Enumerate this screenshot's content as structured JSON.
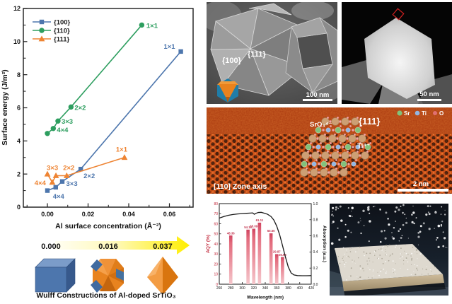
{
  "colors": {
    "series_100": "#4d76ad",
    "series_110": "#2d9e5f",
    "series_111": "#ee8433",
    "aqy_red": "#c22a3c",
    "bar_top": "#cf4460",
    "bar_bottom": "#f5c6cb",
    "arrow_yellow": "#ffee00",
    "hrtem_orange": "#c2410f"
  },
  "chart_data": [
    {
      "type": "scatter",
      "title": "",
      "xlabel": "Al surface concentration (Å⁻²)",
      "ylabel": "Surface energy (J/m²)",
      "xlim": [
        -0.012,
        0.072
      ],
      "ylim": [
        0,
        12
      ],
      "xticks": [
        0.0,
        0.02,
        0.04,
        0.06
      ],
      "yticks": [
        0,
        2,
        4,
        6,
        8,
        10,
        12
      ],
      "grid": false,
      "legend_position": "top-left",
      "series": [
        {
          "name": "{100}",
          "color": "#4d76ad",
          "marker": "square",
          "points": [
            {
              "x": 0.0,
              "y": 1.0,
              "label": ""
            },
            {
              "x": 0.0041,
              "y": 1.2,
              "label": "4×4"
            },
            {
              "x": 0.0073,
              "y": 1.55,
              "label": "3×3"
            },
            {
              "x": 0.0164,
              "y": 2.3,
              "label": "2×2"
            },
            {
              "x": 0.0656,
              "y": 9.4,
              "label": "1×1"
            }
          ]
        },
        {
          "name": "{110}",
          "color": "#2d9e5f",
          "marker": "circle",
          "points": [
            {
              "x": 0.0,
              "y": 4.45,
              "label": ""
            },
            {
              "x": 0.0029,
              "y": 4.75,
              "label": "4×4"
            },
            {
              "x": 0.0052,
              "y": 5.2,
              "label": "3×3"
            },
            {
              "x": 0.0116,
              "y": 6.05,
              "label": "2×2"
            },
            {
              "x": 0.0464,
              "y": 11.0,
              "label": "1×1"
            }
          ]
        },
        {
          "name": "{111}",
          "color": "#ee8433",
          "marker": "triangle",
          "points": [
            {
              "x": 0.0,
              "y": 2.0,
              "label": ""
            },
            {
              "x": 0.0024,
              "y": 1.5,
              "label": "4×4"
            },
            {
              "x": 0.0042,
              "y": 1.9,
              "label": "3×3"
            },
            {
              "x": 0.0095,
              "y": 1.9,
              "label": "2×2"
            },
            {
              "x": 0.0379,
              "y": 3.0,
              "label": "1×1"
            }
          ]
        }
      ]
    },
    {
      "type": "bar",
      "title": "",
      "xlabel": "Wavelength (nm)",
      "ylabel": "AQY (%)",
      "ylabel_right": "Absorption (a.u.)",
      "xlim": [
        260,
        420
      ],
      "ylim": [
        0,
        80
      ],
      "ylim_right": [
        0.0,
        1.0
      ],
      "xticks": [
        260,
        280,
        300,
        320,
        340,
        360,
        380,
        400,
        420
      ],
      "yticks": [
        0,
        10,
        20,
        30,
        40,
        50,
        60,
        70,
        80
      ],
      "yticks_right": [
        0.0,
        0.2,
        0.4,
        0.6,
        0.8,
        1.0
      ],
      "bars": [
        {
          "wavelength": 280,
          "aqy": 48.36,
          "label": "48.36"
        },
        {
          "wavelength": 310,
          "aqy": 54.16,
          "label": "54.16"
        },
        {
          "wavelength": 320,
          "aqy": 55.09,
          "label": "55.09"
        },
        {
          "wavelength": 330,
          "aqy": 61.11,
          "label": "61.11"
        },
        {
          "wavelength": 350,
          "aqy": 50.5,
          "label": "50.50"
        },
        {
          "wavelength": 360,
          "aqy": 29.87,
          "label": "29.87"
        },
        {
          "wavelength": 370,
          "aqy": 26.93,
          "label": "26.93"
        }
      ],
      "absorption_curve": [
        [
          260,
          0.82
        ],
        [
          268,
          0.84
        ],
        [
          276,
          0.855
        ],
        [
          284,
          0.865
        ],
        [
          292,
          0.872
        ],
        [
          300,
          0.876
        ],
        [
          308,
          0.88
        ],
        [
          314,
          0.883
        ],
        [
          318,
          0.885
        ],
        [
          321,
          0.868
        ],
        [
          324,
          0.88
        ],
        [
          328,
          0.89
        ],
        [
          333,
          0.892
        ],
        [
          338,
          0.882
        ],
        [
          344,
          0.868
        ],
        [
          350,
          0.84
        ],
        [
          355,
          0.795
        ],
        [
          360,
          0.72
        ],
        [
          365,
          0.615
        ],
        [
          370,
          0.48
        ],
        [
          375,
          0.34
        ],
        [
          380,
          0.215
        ],
        [
          385,
          0.14
        ],
        [
          390,
          0.115
        ],
        [
          396,
          0.107
        ],
        [
          404,
          0.105
        ],
        [
          412,
          0.105
        ],
        [
          420,
          0.107
        ]
      ]
    }
  ],
  "wulff": {
    "values": [
      "0.000",
      "0.016",
      "0.037"
    ],
    "caption": "Wulff Constructions of Al-doped SrTiO₃",
    "shapes": [
      "cube",
      "truncated-octahedron",
      "octahedron"
    ]
  },
  "sem_image": {
    "facet_label_100": "{100}",
    "facet_label_111": "{111}",
    "scale_bar": "100 nm"
  },
  "stem_image": {
    "scale_bar": "50 nm"
  },
  "hrtem_image": {
    "species_label": "SrO₃⁴⁻",
    "facet_label": "{111}",
    "ion_label": "Ti⁴⁺",
    "zone_axis_label": "[110] Zone axis",
    "scale_bar": "2 nm",
    "legend": [
      {
        "label": "Sr",
        "color": "#82c17a"
      },
      {
        "label": "Ti",
        "color": "#93b7e3"
      },
      {
        "label": "O",
        "color": "#e07070"
      }
    ]
  }
}
